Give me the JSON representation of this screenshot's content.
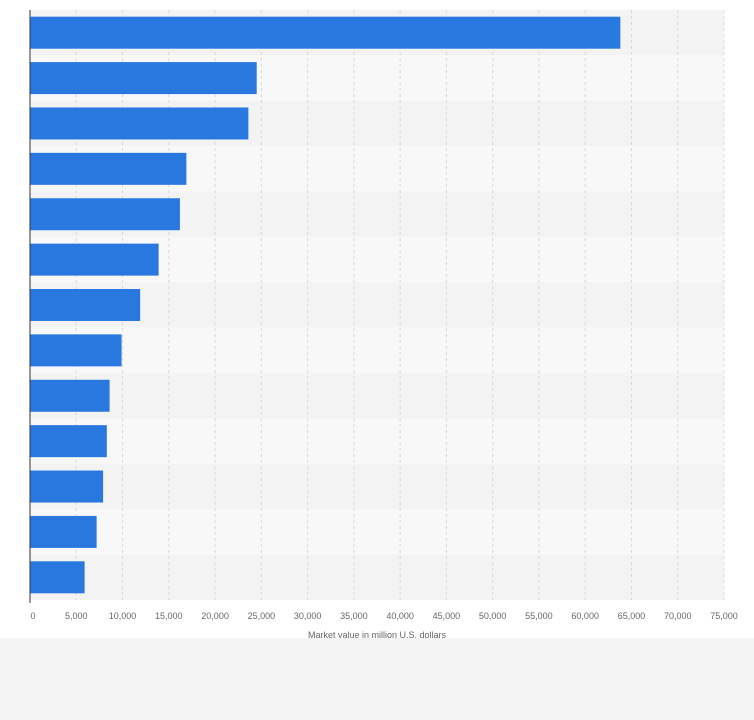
{
  "chart_data": {
    "type": "bar",
    "orientation": "horizontal",
    "title": "",
    "xlabel": "Market value in million U.S. dollars",
    "ylabel": "",
    "xlim": [
      0,
      75000
    ],
    "x_ticks": [
      "0",
      "5,000",
      "10,000",
      "15,000",
      "20,000",
      "25,000",
      "30,000",
      "35,000",
      "40,000",
      "45,000",
      "50,000",
      "55,000",
      "60,000",
      "65,000",
      "70,000",
      "75,000"
    ],
    "x_tick_values": [
      0,
      5000,
      10000,
      15000,
      20000,
      25000,
      30000,
      35000,
      40000,
      45000,
      50000,
      55000,
      60000,
      65000,
      70000,
      75000
    ],
    "values": [
      63800,
      24500,
      23600,
      16900,
      16200,
      13900,
      11900,
      9900,
      8600,
      8300,
      7900,
      7200,
      5900
    ],
    "grid": true,
    "bar_color": "#2878e0",
    "band_colors": [
      "#f3f3f3",
      "#f8f8f8"
    ]
  }
}
